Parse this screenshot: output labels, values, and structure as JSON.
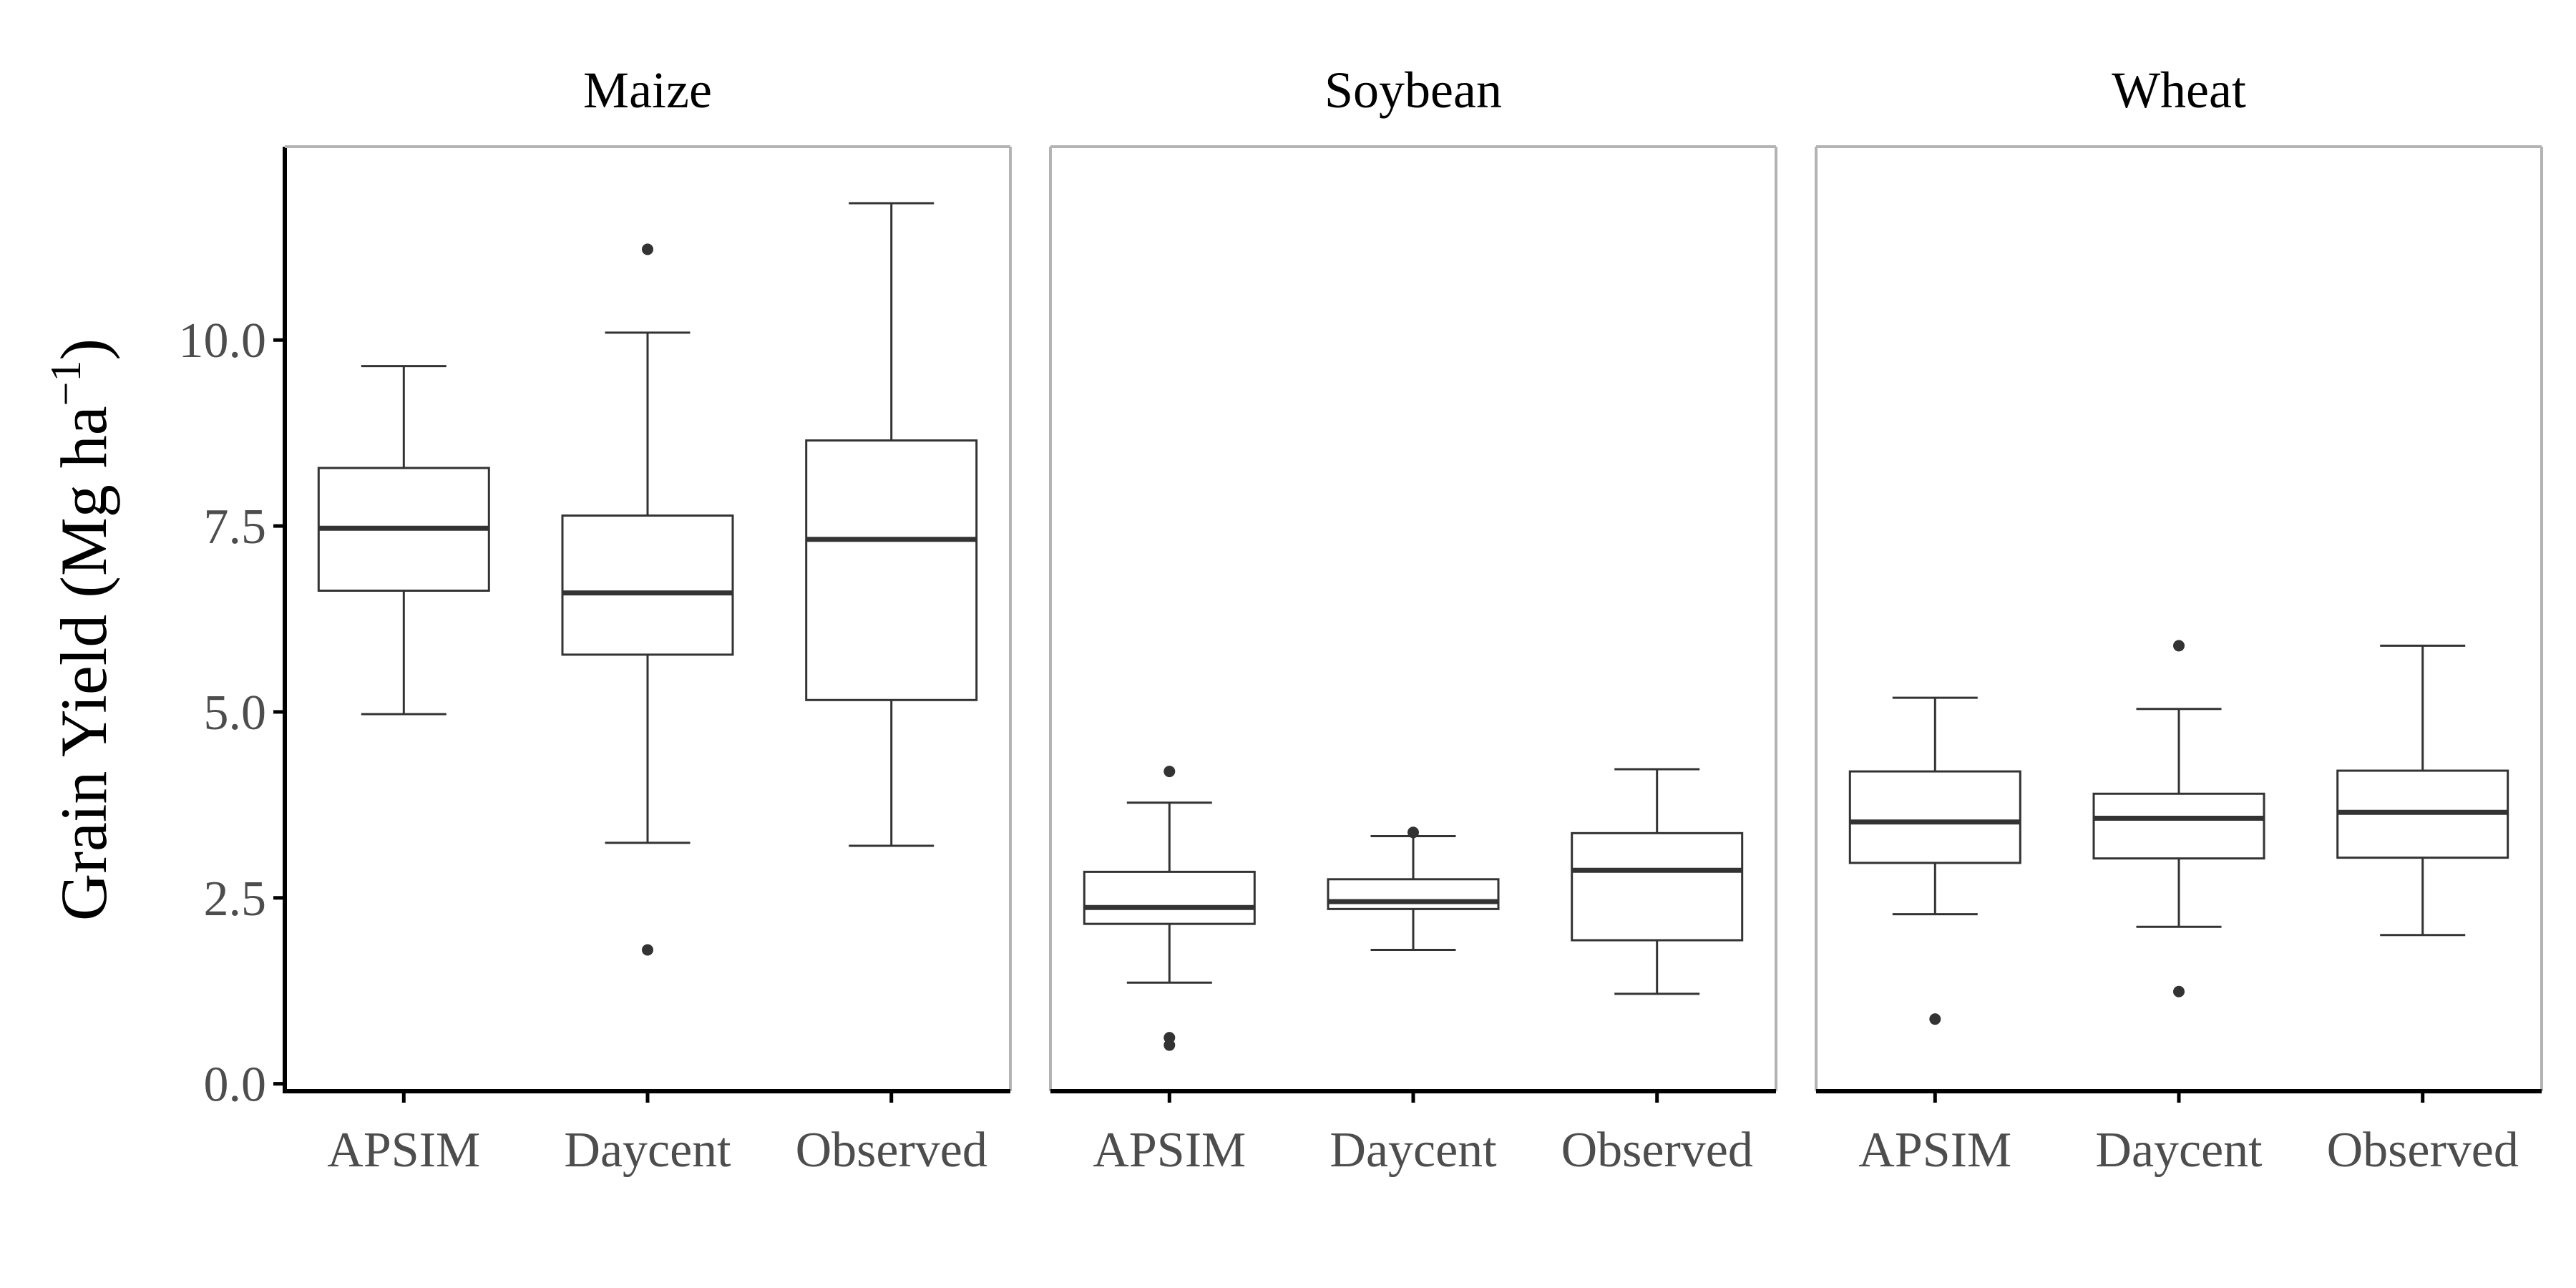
{
  "chart_data": {
    "type": "boxplot",
    "ylabel": "Grain Yield (Mg ha",
    "ylabel_superscript": "−1",
    "ylabel_close": ")",
    "xlabel": "",
    "ylim": [
      -0.1,
      12.6
    ],
    "yticks": [
      0.0,
      2.5,
      5.0,
      7.5,
      10.0
    ],
    "ytick_labels": [
      "0.0",
      "2.5",
      "5.0",
      "7.5",
      "10.0"
    ],
    "categories": [
      "APSIM",
      "Daycent",
      "Observed"
    ],
    "panels": [
      {
        "title": "Maize",
        "boxes": [
          {
            "category": "APSIM",
            "lower_whisker": 4.97,
            "q1": 6.63,
            "median": 7.47,
            "q3": 8.28,
            "upper_whisker": 9.65,
            "outliers": []
          },
          {
            "category": "Daycent",
            "lower_whisker": 3.24,
            "q1": 5.77,
            "median": 6.6,
            "q3": 7.64,
            "upper_whisker": 10.1,
            "outliers": [
              11.22,
              1.8
            ]
          },
          {
            "category": "Observed",
            "lower_whisker": 3.2,
            "q1": 5.16,
            "median": 7.32,
            "q3": 8.65,
            "upper_whisker": 11.84,
            "outliers": []
          }
        ]
      },
      {
        "title": "Soybean",
        "boxes": [
          {
            "category": "APSIM",
            "lower_whisker": 1.36,
            "q1": 2.15,
            "median": 2.37,
            "q3": 2.85,
            "upper_whisker": 3.78,
            "outliers": [
              4.2,
              0.62,
              0.52
            ]
          },
          {
            "category": "Daycent",
            "lower_whisker": 1.8,
            "q1": 2.35,
            "median": 2.45,
            "q3": 2.75,
            "upper_whisker": 3.33,
            "outliers": [
              3.38
            ]
          },
          {
            "category": "Observed",
            "lower_whisker": 1.21,
            "q1": 1.93,
            "median": 2.87,
            "q3": 3.37,
            "upper_whisker": 4.23,
            "outliers": []
          }
        ]
      },
      {
        "title": "Wheat",
        "boxes": [
          {
            "category": "APSIM",
            "lower_whisker": 2.28,
            "q1": 2.97,
            "median": 3.52,
            "q3": 4.2,
            "upper_whisker": 5.19,
            "outliers": [
              0.87
            ]
          },
          {
            "category": "Daycent",
            "lower_whisker": 2.11,
            "q1": 3.03,
            "median": 3.57,
            "q3": 3.9,
            "upper_whisker": 5.04,
            "outliers": [
              5.89,
              1.24
            ]
          },
          {
            "category": "Observed",
            "lower_whisker": 2.0,
            "q1": 3.04,
            "median": 3.65,
            "q3": 4.21,
            "upper_whisker": 5.89,
            "outliers": []
          }
        ]
      }
    ],
    "grid": false,
    "colors": {
      "box_stroke": "#333333",
      "panel_border": "#b3b3b3",
      "axis_line": "#000000",
      "tick_text": "#4d4d4d",
      "title_text": "#000000"
    }
  }
}
